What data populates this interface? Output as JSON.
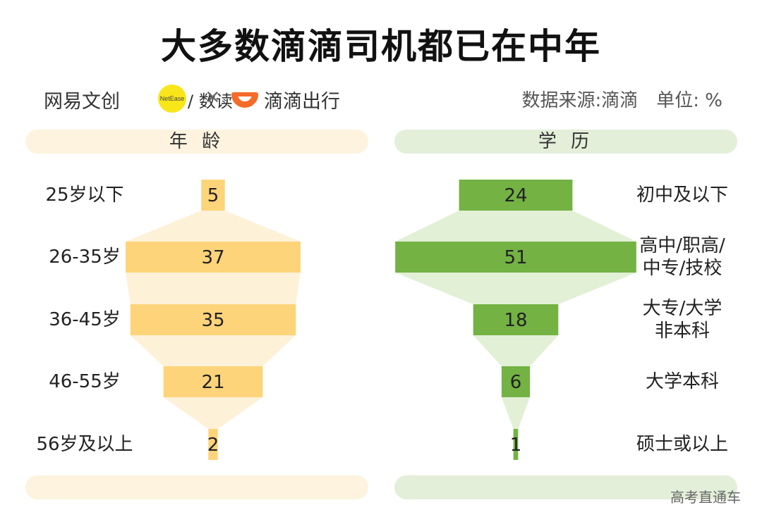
{
  "title": "大多数滴滴司机都已在中年",
  "brand": {
    "netease": "网易文创",
    "netease_badge": "NetEase",
    "shudu": "/ 数读",
    "times": "×",
    "didi": "滴滴出行"
  },
  "source_label": "数据来源:滴滴",
  "unit_label": "单位: %",
  "watermark": "高考直通车",
  "colors": {
    "age_bar": "#fdd47a",
    "age_band": "#fdf1d8",
    "edu_bar": "#73b243",
    "edu_band": "#e2f0d6",
    "didi_orange": "#f56b29"
  },
  "chart_data": [
    {
      "type": "bar",
      "title": "年 龄",
      "categories": [
        "25岁以下",
        "26-35岁",
        "36-45岁",
        "46-55岁",
        "56岁及以上"
      ],
      "values": [
        5,
        37,
        35,
        21,
        2
      ],
      "unit": "%"
    },
    {
      "type": "bar",
      "title": "学 历",
      "categories": [
        "初中及以下",
        "高中/职高/\n中专/技校",
        "大专/大学\n非本科",
        "大学本科",
        "硕士或以上"
      ],
      "values": [
        24,
        51,
        18,
        6,
        1
      ],
      "unit": "%"
    }
  ]
}
